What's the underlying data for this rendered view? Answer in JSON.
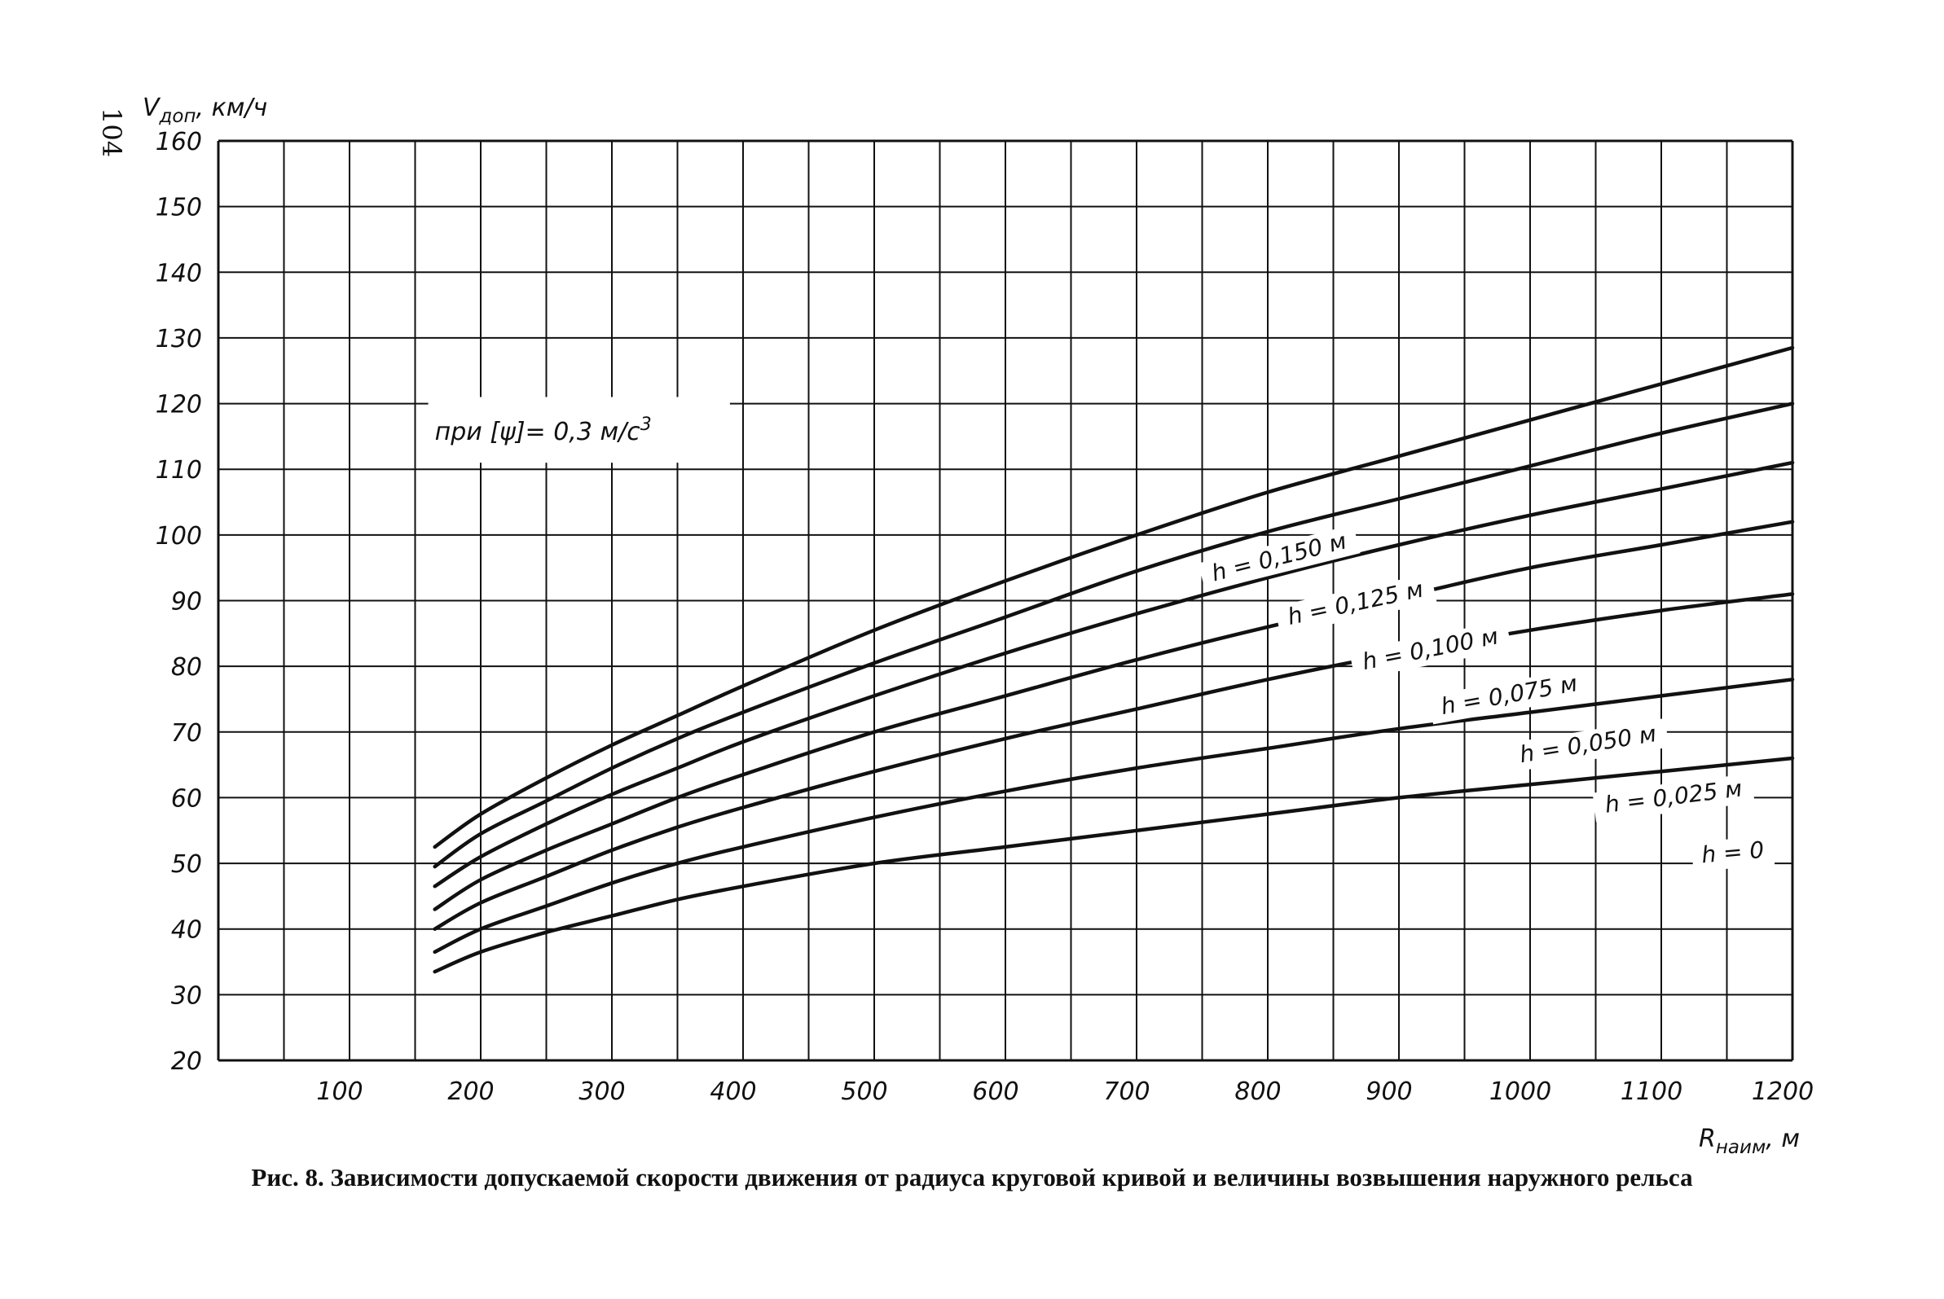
{
  "page_number": "104",
  "caption": "Рис. 8. Зависимости допускаемой скорости движения от радиуса круговой кривой и величины возвышения наружного рельса",
  "note": {
    "prefix": "при [ψ]= 0,3 м/с",
    "sup": "3"
  },
  "chart_data": {
    "type": "line",
    "title": "",
    "ylabel_main": "V",
    "ylabel_sub": "доп",
    "ylabel_unit": ", км/ч",
    "xlabel_main": "R",
    "xlabel_sub": "наим",
    "xlabel_unit": ", м",
    "xlim": [
      0,
      1200
    ],
    "ylim": [
      20,
      160
    ],
    "x_ticks": [
      100,
      200,
      300,
      400,
      500,
      600,
      700,
      800,
      900,
      1000,
      1100,
      1200
    ],
    "y_ticks": [
      20,
      30,
      40,
      50,
      60,
      70,
      80,
      90,
      100,
      110,
      120,
      130,
      140,
      150,
      160
    ],
    "grid": true,
    "series": [
      {
        "name": "h = 0,150 м",
        "x": [
          165,
          200,
          250,
          300,
          350,
          400,
          500,
          600,
          700,
          800,
          900,
          1000,
          1100,
          1200
        ],
        "values": [
          52.5,
          57.5,
          63,
          68,
          72.5,
          77,
          85.5,
          93,
          100,
          106.5,
          112,
          117.5,
          123,
          128.5
        ]
      },
      {
        "name": "h = 0,125 м",
        "x": [
          165,
          200,
          250,
          300,
          350,
          400,
          500,
          600,
          700,
          800,
          900,
          1000,
          1100,
          1200
        ],
        "values": [
          49.5,
          54.5,
          59.5,
          64.5,
          69,
          73,
          80.5,
          87.5,
          94.5,
          100.5,
          105.5,
          110.5,
          115.5,
          120
        ]
      },
      {
        "name": "h = 0,100 м",
        "x": [
          165,
          200,
          250,
          300,
          350,
          400,
          500,
          600,
          700,
          800,
          900,
          1000,
          1100,
          1200
        ],
        "values": [
          46.5,
          51,
          56,
          60.5,
          64.5,
          68.5,
          75.5,
          82,
          88,
          93.5,
          98.5,
          103,
          107,
          111
        ]
      },
      {
        "name": "h = 0,075 м",
        "x": [
          165,
          200,
          250,
          300,
          350,
          400,
          500,
          600,
          700,
          800,
          900,
          1000,
          1100,
          1200
        ],
        "values": [
          43,
          47.5,
          52,
          56,
          60,
          63.5,
          70,
          75.5,
          81,
          86,
          90.5,
          95,
          98.5,
          102
        ]
      },
      {
        "name": "h = 0,050 м",
        "x": [
          165,
          200,
          250,
          300,
          350,
          400,
          500,
          600,
          700,
          800,
          900,
          1000,
          1100,
          1200
        ],
        "values": [
          40,
          44,
          48,
          52,
          55.5,
          58.5,
          64,
          69,
          73.5,
          78,
          82,
          85.5,
          88.5,
          91
        ]
      },
      {
        "name": "h = 0,025 м",
        "x": [
          165,
          200,
          250,
          300,
          350,
          400,
          500,
          600,
          700,
          800,
          900,
          1000,
          1100,
          1200
        ],
        "values": [
          36.5,
          40,
          43.5,
          47,
          50,
          52.5,
          57,
          61,
          64.5,
          67.5,
          70.5,
          73,
          75.5,
          78
        ]
      },
      {
        "name": "h = 0",
        "x": [
          165,
          200,
          250,
          300,
          350,
          400,
          500,
          600,
          700,
          800,
          900,
          1000,
          1100,
          1200
        ],
        "values": [
          33.5,
          36.5,
          39.5,
          42,
          44.5,
          46.5,
          50,
          52.5,
          55,
          57.5,
          60,
          62,
          64,
          66
        ]
      }
    ],
    "series_label_anchors": [
      {
        "x": 810,
        "y": 95.5,
        "angle": -14
      },
      {
        "x": 868,
        "y": 88.5,
        "angle": -12
      },
      {
        "x": 925,
        "y": 81.5,
        "angle": -11
      },
      {
        "x": 985,
        "y": 74.5,
        "angle": -10
      },
      {
        "x": 1045,
        "y": 67,
        "angle": -9
      },
      {
        "x": 1110,
        "y": 59,
        "angle": -7
      },
      {
        "x": 1155,
        "y": 50.5,
        "angle": -5
      }
    ]
  }
}
